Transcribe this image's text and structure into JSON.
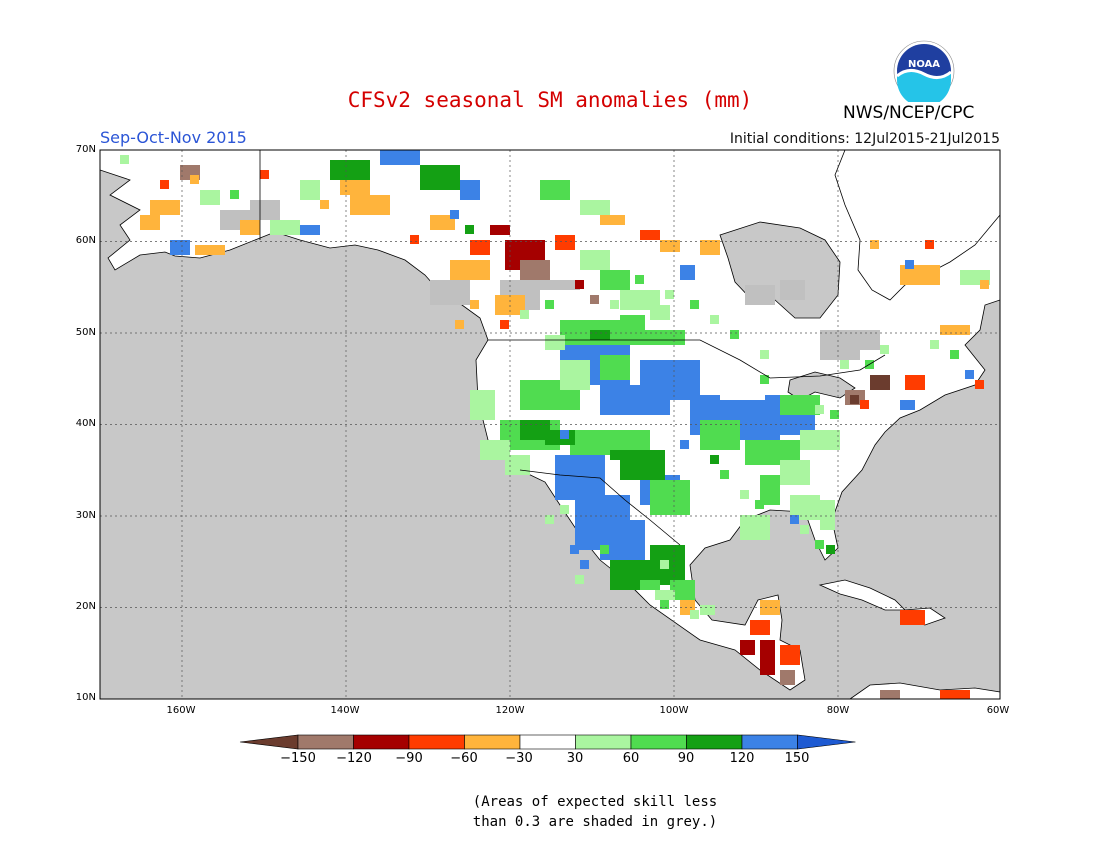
{
  "header": {
    "title": "CFSv2 seasonal SM anomalies (mm)",
    "season": "Sep-Oct-Nov 2015",
    "initial_conditions": "Initial conditions: 12Jul2015-21Jul2015",
    "agency": "NWS/NCEP/CPC",
    "logo_text": "NOAA"
  },
  "map": {
    "lat_labels": [
      "70N",
      "60N",
      "50N",
      "40N",
      "30N",
      "20N",
      "10N"
    ],
    "lon_labels": [
      "160W",
      "140W",
      "120W",
      "100W",
      "80W",
      "60W"
    ],
    "colors": {
      "ocean": "#c8c8c8",
      "land": "#ffffff",
      "grey_skill": "#c0c0c0",
      "coast": "#000000"
    }
  },
  "colorbar": {
    "labels": [
      "−150",
      "−120",
      "−90",
      "−60",
      "−30",
      "30",
      "60",
      "90",
      "120",
      "150"
    ],
    "colors": [
      "#6b3c2e",
      "#a0796b",
      "#a50000",
      "#ff3c00",
      "#ffb43c",
      "#ffffff",
      "#aaf5a0",
      "#50dc50",
      "#14a014",
      "#3c82e6",
      "#1e5ad2"
    ]
  },
  "footnote": {
    "line1": "(Areas of expected skill less",
    "line2": "than 0.3 are shaded in grey.)"
  }
}
